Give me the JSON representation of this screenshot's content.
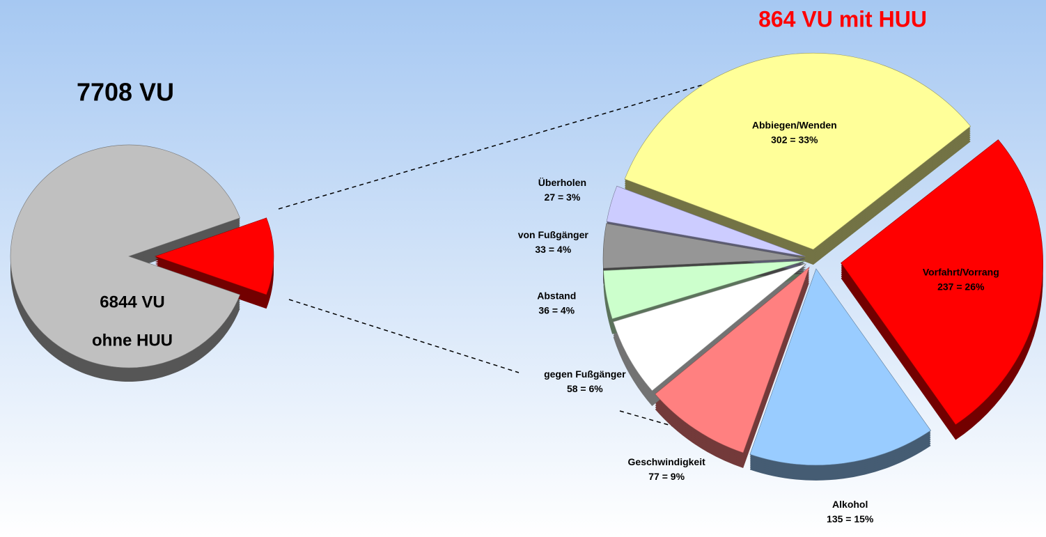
{
  "chart_data": [
    {
      "type": "pie",
      "title": "7708 VU",
      "categories": [
        "ohne HUU",
        null
      ],
      "values": [
        6844,
        864
      ],
      "value_labels": [
        "6844 VU",
        null
      ],
      "colors": [
        "#c0c0c0",
        "#ff0000"
      ]
    },
    {
      "type": "pie",
      "title": "864 VU mit HUU",
      "categories": [
        "Abbiegen/Wenden",
        "Vorfahrt/Vorrang",
        "Alkohol",
        "Geschwindigkeit",
        "gegen Fußgänger",
        "Abstand",
        "von Fußgänger",
        "Überholen"
      ],
      "values": [
        302,
        237,
        135,
        77,
        58,
        36,
        33,
        27
      ],
      "value_labels": [
        "302 = 33%",
        "237 = 26%",
        "135 = 15%",
        "77 = 9%",
        "58 = 6%",
        "36 = 4%",
        "33 = 4%",
        "27 = 3%"
      ],
      "colors": [
        "#ffff99",
        "#ff0000",
        "#99ccff",
        "#ff8080",
        "#ffffff",
        "#ccffcc",
        "#969696",
        "#ccccff"
      ]
    }
  ]
}
